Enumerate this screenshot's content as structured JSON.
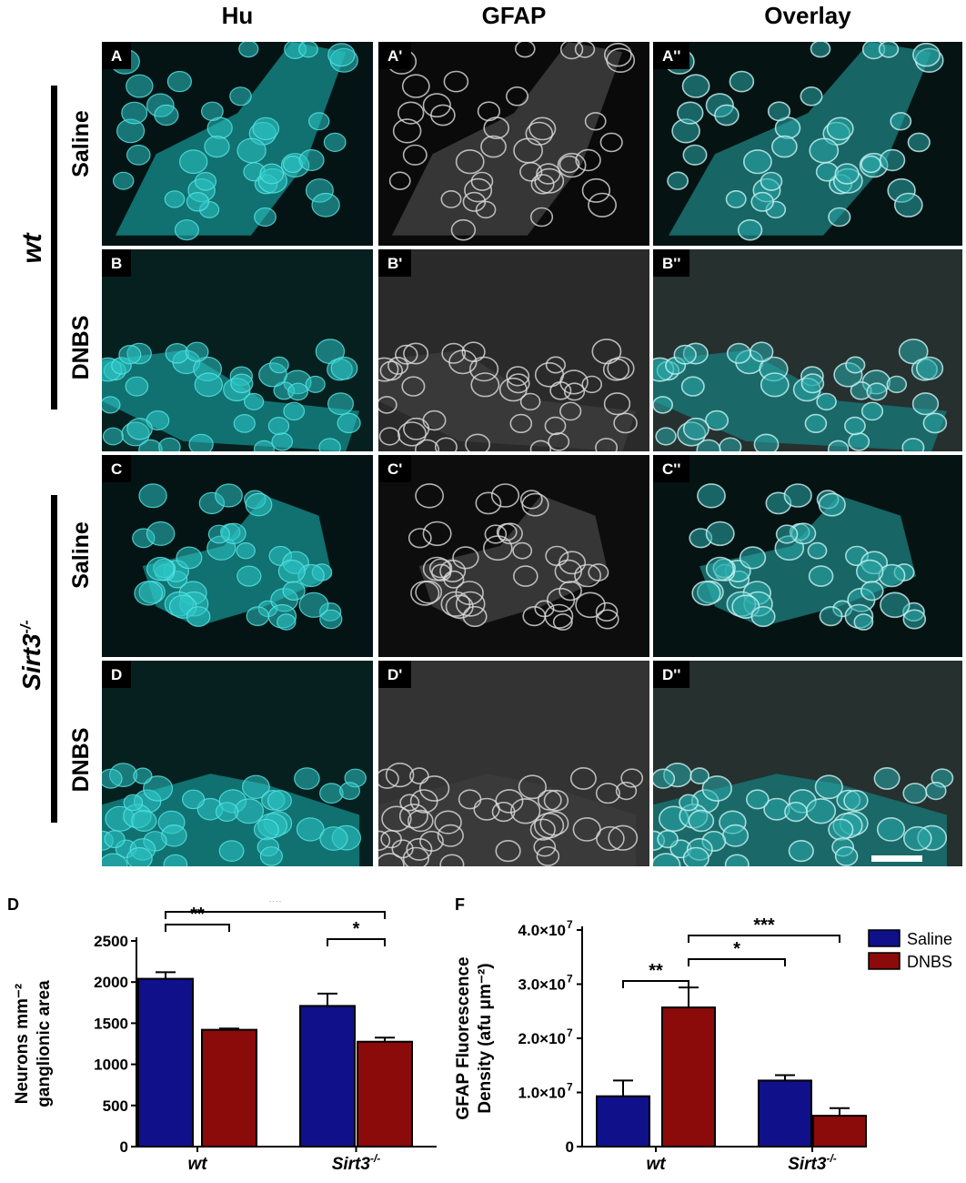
{
  "columns": [
    "Hu",
    "GFAP",
    "Overlay"
  ],
  "rows": [
    {
      "group": "wt",
      "treatment": "Saline",
      "labels": [
        "A",
        "A'",
        "A''"
      ]
    },
    {
      "group": "wt",
      "treatment": "DNBS",
      "labels": [
        "B",
        "B'",
        "B''"
      ]
    },
    {
      "group": "Sirt3-/-",
      "treatment": "Saline",
      "labels": [
        "C",
        "C'",
        "C''"
      ]
    },
    {
      "group": "Sirt3-/-",
      "treatment": "DNBS",
      "labels": [
        "D",
        "D'",
        "D''"
      ]
    }
  ],
  "groups": {
    "wt": "wt",
    "sirt3": "Sirt3",
    "sirt3_sup": "-/-"
  },
  "colors": {
    "saline": "#10108a",
    "dnbs": "#8b0a0a",
    "cyan": "#2fd6d6"
  },
  "chart_data": [
    {
      "panel_label": "D",
      "type": "bar",
      "ylabel_lines": [
        "Neurons mm⁻²",
        "ganglionic area"
      ],
      "ylim": [
        0,
        2500
      ],
      "yticks": [
        "0",
        "500",
        "1000",
        "1500",
        "2000",
        "2500"
      ],
      "categories": [
        "wt",
        "Sirt3"
      ],
      "category_sup": [
        "",
        "-/-"
      ],
      "series": [
        {
          "name": "Saline",
          "values": [
            2040,
            1710
          ],
          "errors": [
            80,
            150
          ]
        },
        {
          "name": "DNBS",
          "values": [
            1420,
            1275
          ],
          "errors": [
            15,
            50
          ]
        }
      ],
      "annotations": [
        {
          "from": 0,
          "to": 1,
          "label": "**"
        },
        {
          "from": 2,
          "to": 3,
          "label": "*"
        },
        {
          "from": 0,
          "to": 3,
          "label": "**"
        }
      ]
    },
    {
      "panel_label": "F",
      "type": "bar",
      "ylabel_lines": [
        "GFAP Fluorescence",
        "Density (afu μm⁻²)"
      ],
      "ylim": [
        0,
        40000000
      ],
      "yticks": [
        "0",
        "1.0×10",
        "2.0×10",
        "3.0×10",
        "4.0×10"
      ],
      "ytick_exp": "7",
      "categories": [
        "wt",
        "Sirt3"
      ],
      "category_sup": [
        "",
        "-/-"
      ],
      "series": [
        {
          "name": "Saline",
          "values": [
            9300000,
            12200000
          ],
          "errors": [
            2900000,
            1000000
          ]
        },
        {
          "name": "DNBS",
          "values": [
            25700000,
            5700000
          ],
          "errors": [
            3700000,
            1400000
          ]
        }
      ],
      "annotations": [
        {
          "from": 0,
          "to": 1,
          "label": "**"
        },
        {
          "from": 1,
          "to": 2,
          "label": "*"
        },
        {
          "from": 1,
          "to": 3,
          "label": "***"
        }
      ],
      "legend": {
        "position": "top-right",
        "entries": [
          "Saline",
          "DNBS"
        ]
      }
    }
  ]
}
